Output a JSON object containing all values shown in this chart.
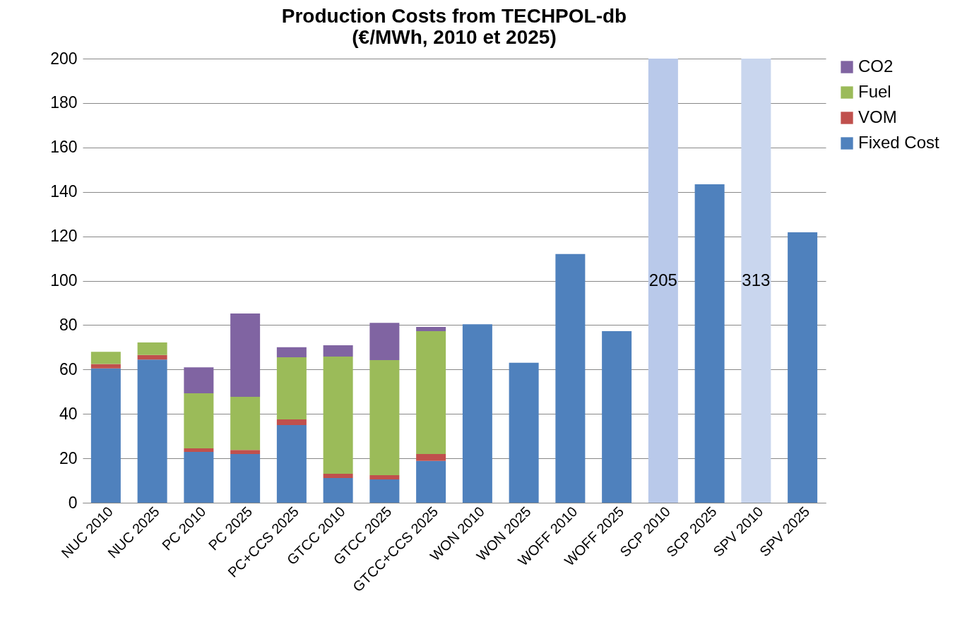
{
  "chart_data": {
    "type": "bar",
    "title": "Production Costs from TECHPOL-db\n(€/MWh, 2010 et 2025)",
    "stacked": true,
    "categories": [
      "NUC 2010",
      "NUC 2025",
      "PC 2010",
      "PC 2025",
      "PC+CCS 2025",
      "GTCC 2010",
      "GTCC 2025",
      "GTCC+CCS 2025",
      "WON 2010",
      "WON 2025",
      "WOFF 2010",
      "WOFF 2025",
      "SCP 2010",
      "SCP 2025",
      "SPV 2010",
      "SPV 2025"
    ],
    "series": [
      {
        "name": "Fixed Cost",
        "color": "#4f81bd",
        "values": [
          60.5,
          64.5,
          22.9,
          21.9,
          35,
          11.1,
          10.5,
          18.8,
          80.4,
          63,
          112,
          77.3,
          null,
          143.4,
          null,
          121.8
        ]
      },
      {
        "name": "VOM",
        "color": "#c0504d",
        "values": [
          2,
          2,
          1.6,
          1.9,
          2.5,
          1.9,
          1.9,
          3.1,
          null,
          null,
          null,
          null,
          null,
          null,
          null,
          null
        ]
      },
      {
        "name": "Fuel",
        "color": "#9bbb59",
        "values": [
          5.5,
          5.7,
          24.8,
          23.9,
          28,
          52.8,
          51.8,
          55.4,
          null,
          null,
          null,
          null,
          null,
          null,
          null,
          null
        ]
      },
      {
        "name": "CO2",
        "color": "#8064a2",
        "values": [
          null,
          null,
          11.7,
          37.5,
          4.5,
          5.1,
          16.8,
          1.9,
          null,
          null,
          null,
          null,
          null,
          null,
          null,
          null
        ]
      }
    ],
    "bands": [
      {
        "axis": "x",
        "from": "SCP 2010",
        "to": "SCP 2010",
        "color": "#b9c9ea"
      },
      {
        "axis": "x",
        "from": "SPV 2010",
        "to": "SPV 2010",
        "color": "#c9d6ee"
      }
    ],
    "annotations": [
      "205",
      "313"
    ],
    "ylim": [
      0,
      200
    ],
    "yticks": [
      0,
      20,
      40,
      60,
      80,
      100,
      120,
      140,
      160,
      180,
      200
    ],
    "grid": "y",
    "legend": "right"
  }
}
